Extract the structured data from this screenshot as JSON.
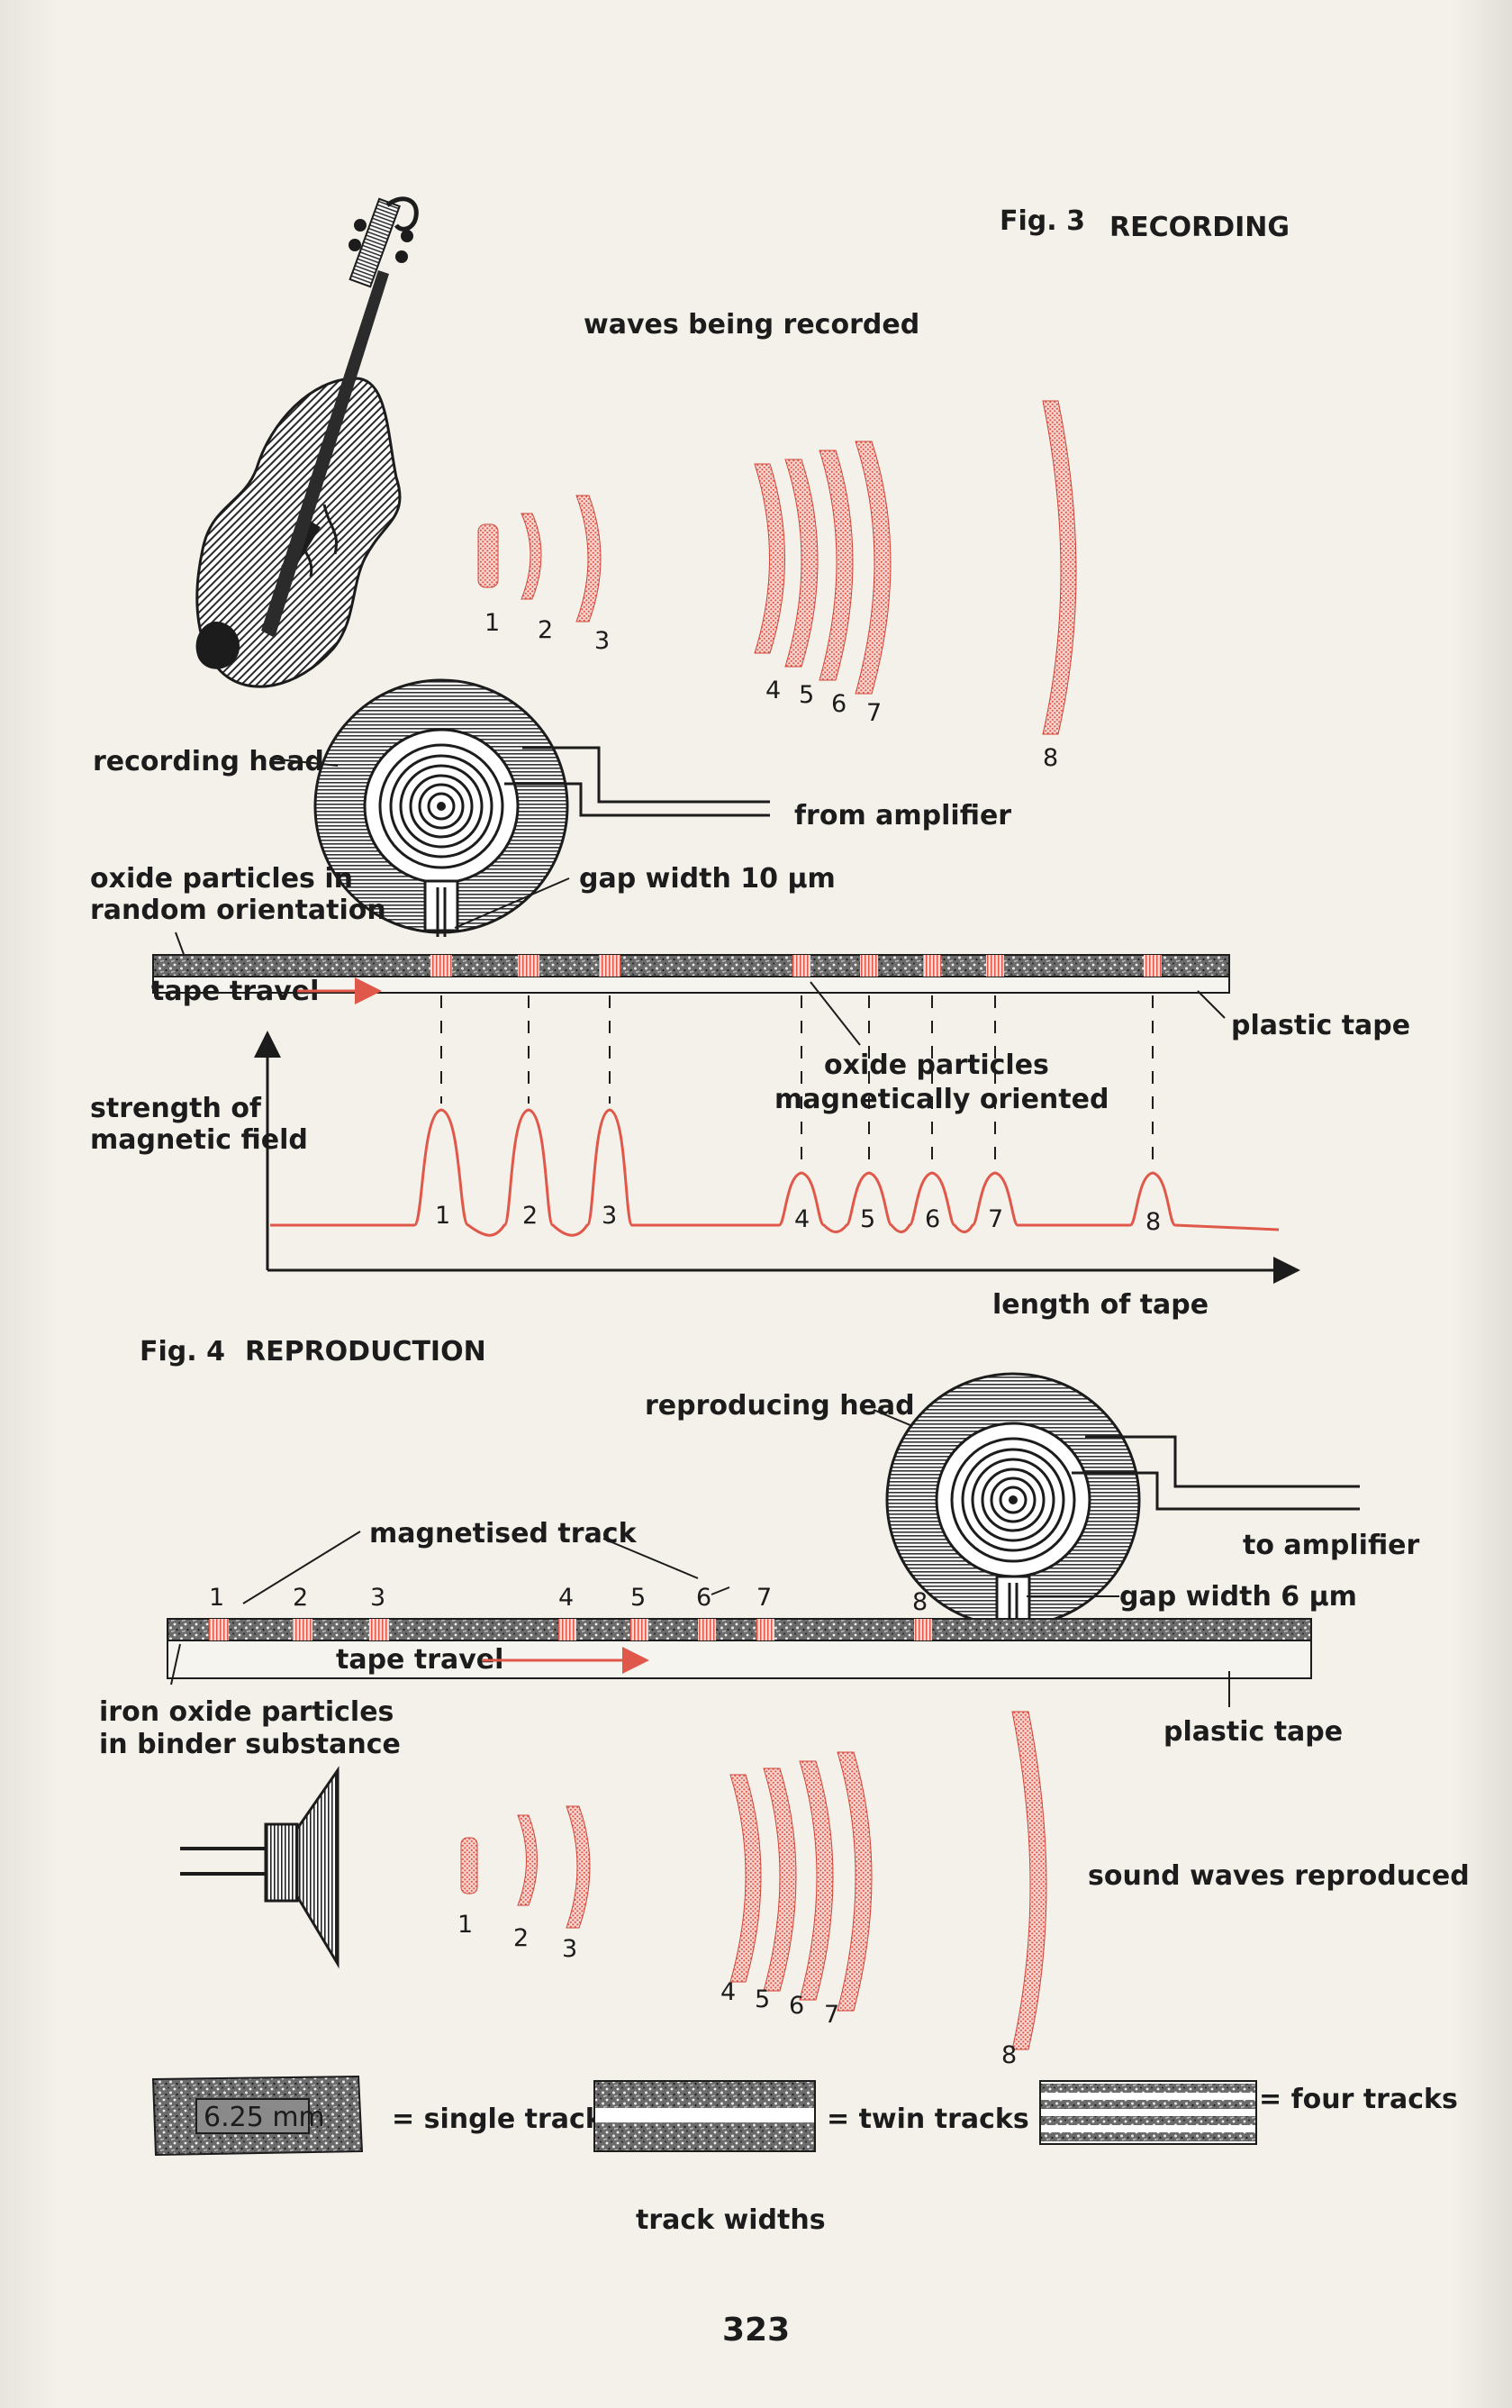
{
  "fig3": {
    "caption_label": "Fig. 3",
    "caption_title": "RECORDING",
    "waves_label": "waves being recorded",
    "wave_numbers": [
      "1",
      "2",
      "3",
      "4",
      "5",
      "6",
      "7",
      "8"
    ],
    "recording_head_label": "recording head",
    "from_amplifier_label": "from amplifier",
    "gap_width_label": "gap width 10 μm",
    "oxide_random_label_line1": "oxide particles in",
    "oxide_random_label_line2": "random orientation",
    "tape_travel_label": "tape travel",
    "plastic_tape_label": "plastic tape",
    "oxide_oriented_label_line1": "oxide particles",
    "oxide_oriented_label_line2": "magnetically oriented",
    "y_axis_label_line1": "strength of",
    "y_axis_label_line2": "magnetic field",
    "x_axis_label": "length of tape",
    "peak_numbers": [
      "1",
      "2",
      "3",
      "4",
      "5",
      "6",
      "7",
      "8"
    ]
  },
  "fig4": {
    "caption_label": "Fig. 4",
    "caption_title": "REPRODUCTION",
    "reproducing_head_label": "reproducing head",
    "to_amplifier_label": "to amplifier",
    "gap_width_label": "gap width 6 μm",
    "magnetised_track_label": "magnetised track",
    "track_numbers": [
      "1",
      "2",
      "3",
      "4",
      "5",
      "6",
      "7",
      "8"
    ],
    "tape_travel_label": "tape travel",
    "iron_oxide_label_line1": "iron oxide particles",
    "iron_oxide_label_line2": "in binder substance",
    "plastic_tape_label": "plastic tape",
    "sound_label": "sound waves reproduced",
    "wave_numbers": [
      "1",
      "2",
      "3",
      "4",
      "5",
      "6",
      "7",
      "8"
    ]
  },
  "track_widths": {
    "tape_width_value": "6.25 mm",
    "single_label": "= single track",
    "twin_label": "= twin tracks",
    "four_label": "= four tracks",
    "caption": "track widths"
  },
  "page_number": "323",
  "colors": {
    "accent_red": "#e0584a",
    "ink": "#1c1c1c",
    "paper": "#f4f1ea"
  }
}
